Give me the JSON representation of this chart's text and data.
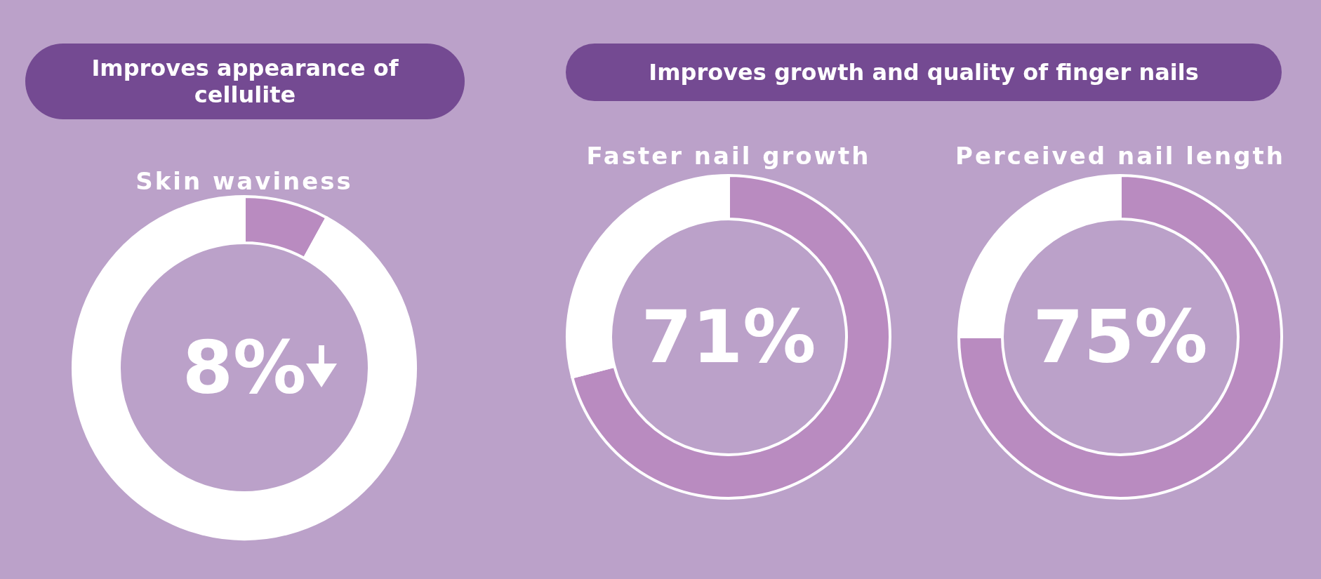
{
  "chart_data": [
    {
      "type": "donut",
      "title": "Improves appearance of cellulite",
      "subtitle": "Skin waviness",
      "categories": [
        null,
        null
      ],
      "values": [
        8,
        92
      ],
      "colors": [
        "#b98bc0",
        "#ffffff"
      ],
      "annotations": [
        "8%"
      ]
    },
    {
      "type": "donut",
      "title": "Improves growth and quality of finger nails",
      "subtitle": "Faster nail growth",
      "categories": [
        null,
        null
      ],
      "values": [
        71,
        29
      ],
      "colors": [
        "#b98bc0",
        "#ffffff"
      ],
      "annotations": [
        "71%"
      ]
    },
    {
      "type": "donut",
      "subtitle": "Perceived nail length",
      "categories": [
        null,
        null
      ],
      "values": [
        75,
        25
      ],
      "colors": [
        "#b98bc0",
        "#ffffff"
      ],
      "annotations": [
        "75%"
      ]
    }
  ]
}
